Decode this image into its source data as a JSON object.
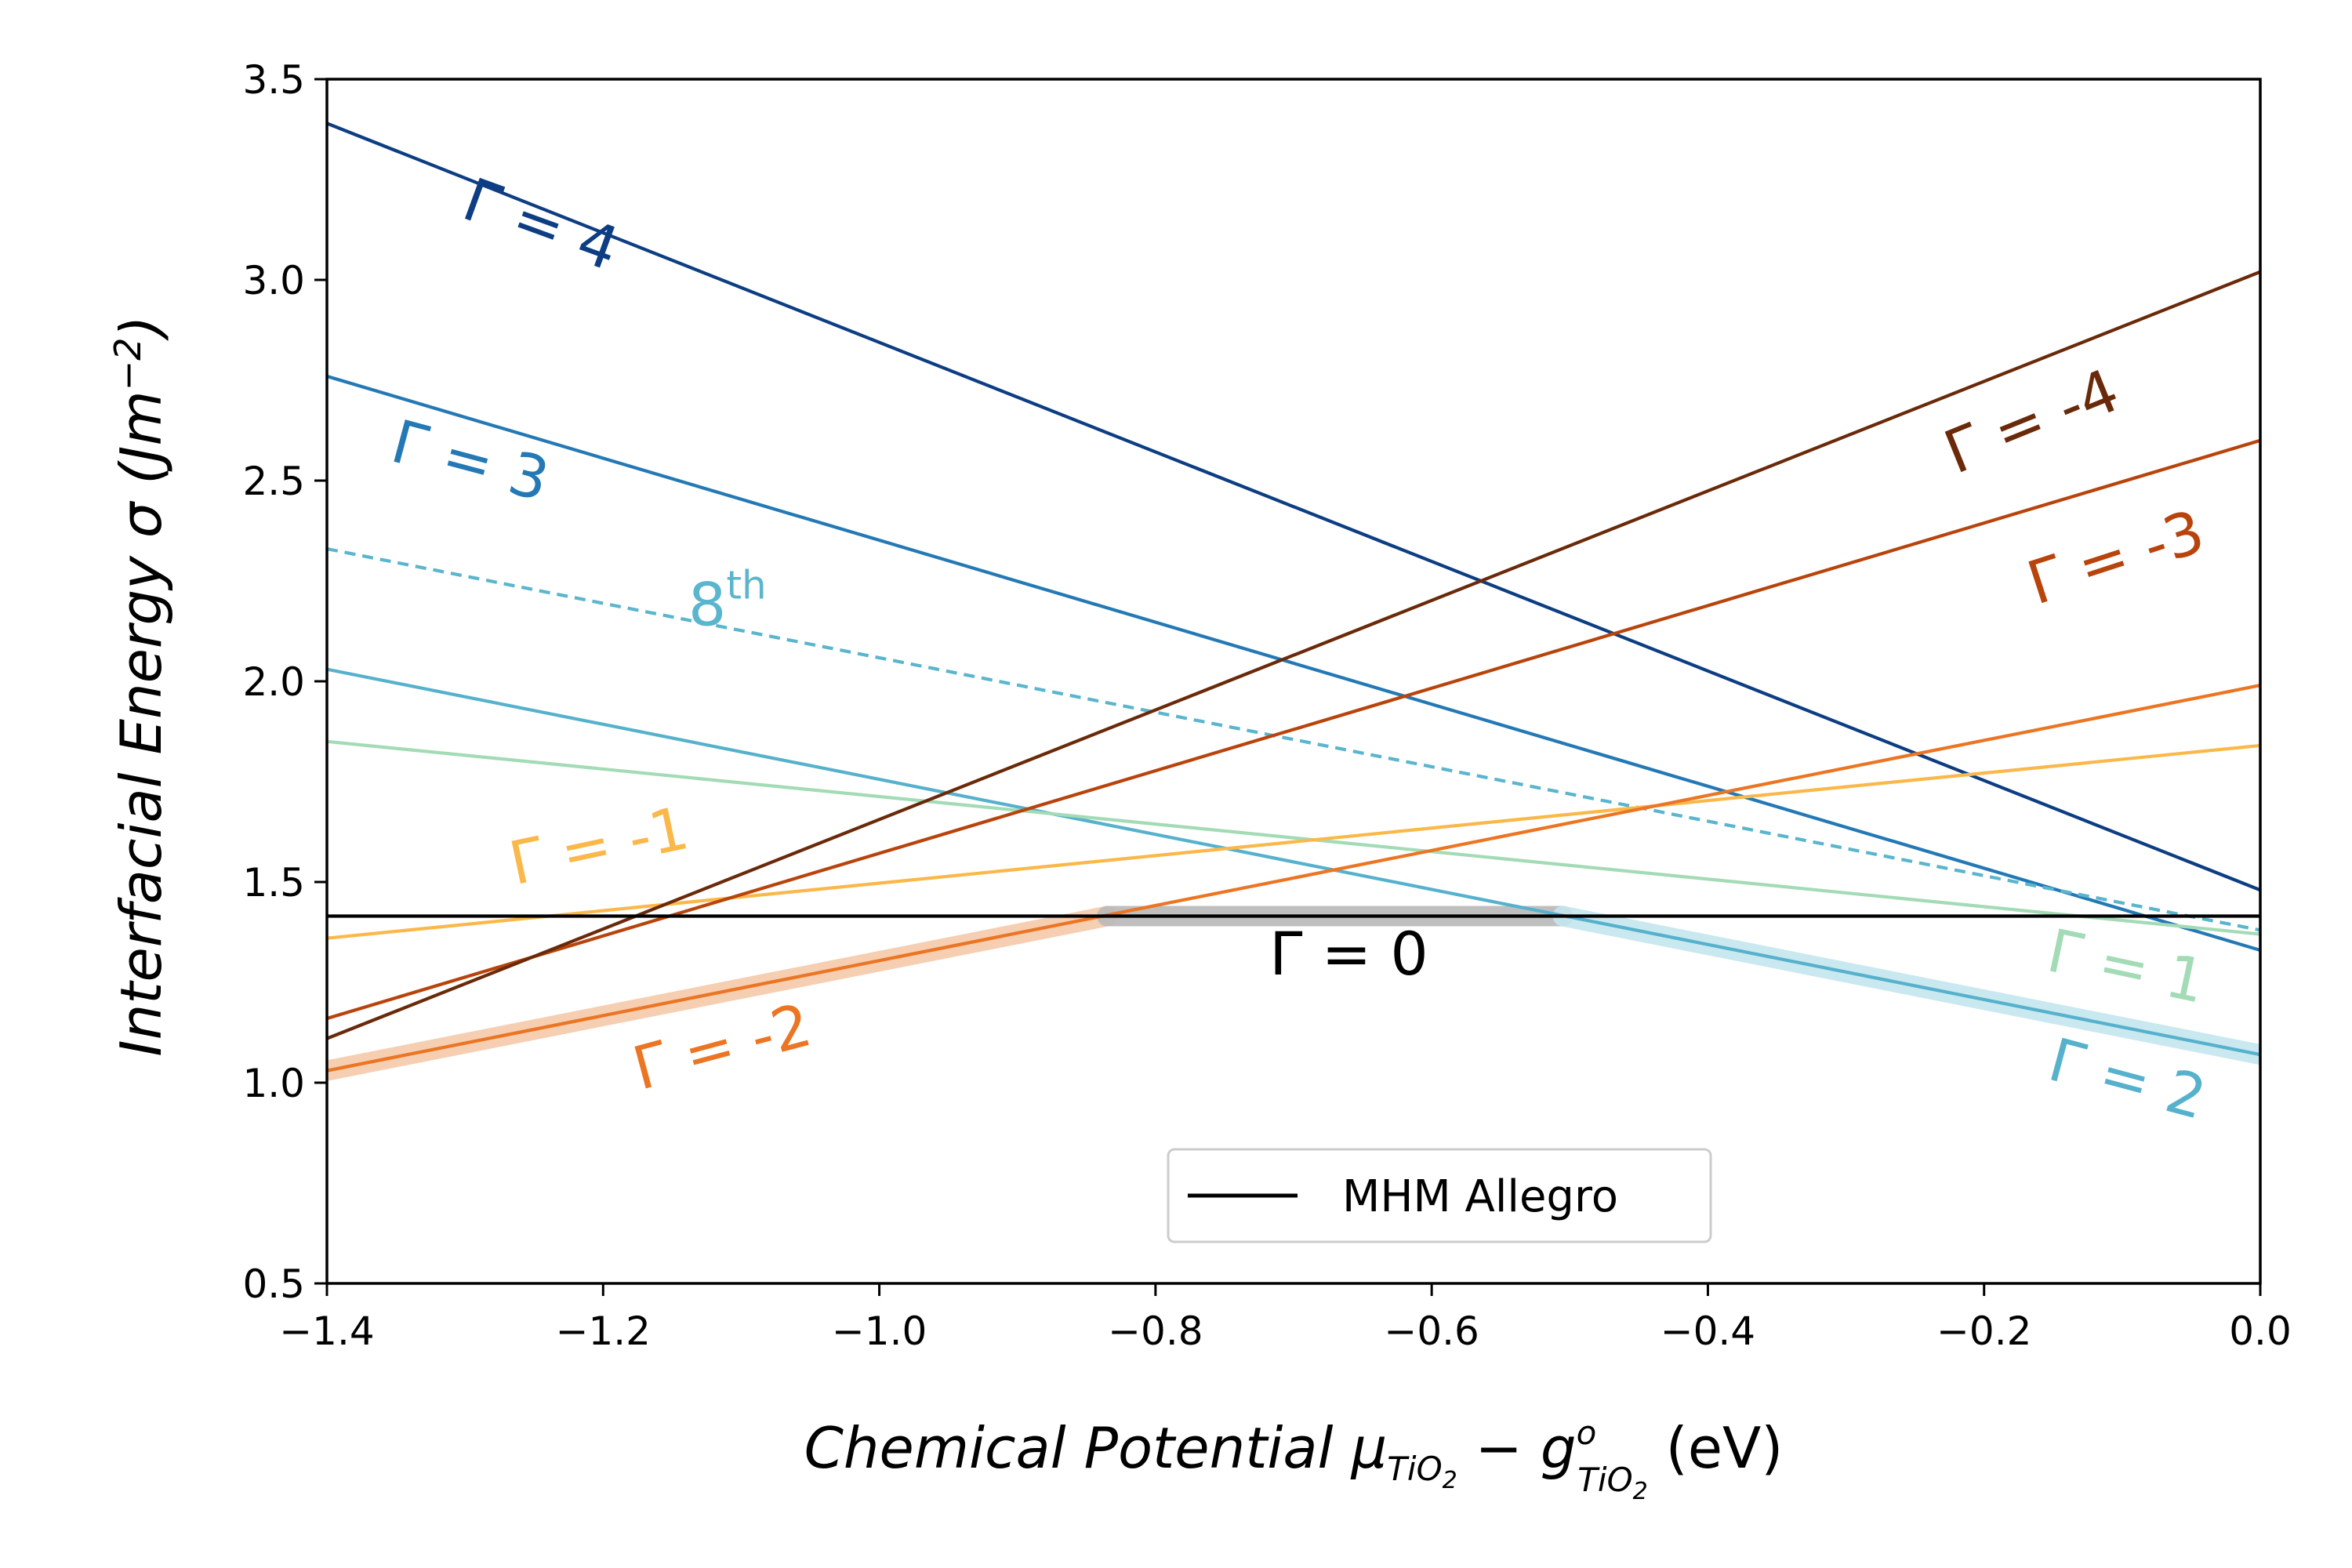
{
  "chart_data": {
    "type": "line",
    "xlabel_main": "Chemical Potential ",
    "xlabel_mu": "μ",
    "xlabel_mu_sub": "TiO",
    "xlabel_mu_sub2": "2",
    "xlabel_minus": " − ",
    "xlabel_g": "g",
    "xlabel_g_sup": "o",
    "xlabel_g_sub": "TiO",
    "xlabel_g_sub2": "2",
    "xlabel_unit": " (eV)",
    "ylabel_main": "Interfacial Energy σ (Jm",
    "ylabel_sup": "−2",
    "ylabel_end": ")",
    "xlim": [
      -1.4,
      0.0
    ],
    "ylim": [
      0.5,
      3.5
    ],
    "xticks": [
      -1.4,
      -1.2,
      -1.0,
      -0.8,
      -0.6,
      -0.4,
      -0.2,
      0.0
    ],
    "xtick_labels": [
      "−1.4",
      "−1.2",
      "−1.0",
      "−0.8",
      "−0.6",
      "−0.4",
      "−0.2",
      "0.0"
    ],
    "yticks": [
      0.5,
      1.0,
      1.5,
      2.0,
      2.5,
      3.0,
      3.5
    ],
    "ytick_labels": [
      "0.5",
      "1.0",
      "1.5",
      "2.0",
      "2.5",
      "3.0",
      "3.5"
    ],
    "series": [
      {
        "key": "g4",
        "label": "Γ = 4",
        "x": [
          -1.4,
          0.0
        ],
        "y": [
          3.39,
          1.48
        ],
        "color": "#0d3d82",
        "dashed": false,
        "label_pos": [
          -1.25,
          3.09
        ],
        "label_rotation": 20
      },
      {
        "key": "g3",
        "label": "Γ = 3",
        "x": [
          -1.4,
          0.0
        ],
        "y": [
          2.76,
          1.33
        ],
        "color": "#2479b5",
        "dashed": false,
        "label_pos": [
          -1.3,
          2.5
        ],
        "label_rotation": 15
      },
      {
        "key": "g8th",
        "label": "8",
        "label_sup": "th",
        "x": [
          -1.4,
          0.0
        ],
        "y": [
          2.33,
          1.38
        ],
        "color": "#5ab5cd",
        "dashed": true,
        "label_pos": [
          -1.11,
          2.14
        ],
        "label_rotation": 0
      },
      {
        "key": "g2",
        "label": "Γ = 2",
        "x": [
          -1.4,
          0.0
        ],
        "y": [
          2.03,
          1.07
        ],
        "color": "#56b1cc",
        "dashed": false,
        "label_pos": [
          -0.1,
          0.96
        ],
        "label_rotation": 15
      },
      {
        "key": "g1",
        "label": "Γ = 1",
        "x": [
          -1.4,
          0.0
        ],
        "y": [
          1.85,
          1.37
        ],
        "color": "#a3dbb6",
        "dashed": false,
        "label_pos": [
          -0.1,
          1.24
        ],
        "label_rotation": 12
      },
      {
        "key": "gm1",
        "label": "Γ = -1",
        "x": [
          -1.4,
          0.0
        ],
        "y": [
          1.36,
          1.84
        ],
        "color": "#fbb84a",
        "dashed": false,
        "label_pos": [
          -1.2,
          1.54
        ],
        "label_rotation": -12
      },
      {
        "key": "gm2",
        "label": "Γ = -2",
        "x": [
          -1.4,
          0.0
        ],
        "y": [
          1.03,
          1.99
        ],
        "color": "#ec7523",
        "dashed": false,
        "label_pos": [
          -1.11,
          1.04
        ],
        "label_rotation": -15
      },
      {
        "key": "gm3",
        "label": "Γ = -3",
        "x": [
          -1.4,
          0.0
        ],
        "y": [
          1.16,
          2.6
        ],
        "color": "#b8440c",
        "dashed": false,
        "label_pos": [
          -0.1,
          2.26
        ],
        "label_rotation": -18
      },
      {
        "key": "gm4",
        "label": "Γ = -4",
        "x": [
          -1.4,
          0.0
        ],
        "y": [
          1.11,
          3.02
        ],
        "color": "#6a2a0a",
        "dashed": false,
        "label_pos": [
          -0.16,
          2.6
        ],
        "label_rotation": -22
      },
      {
        "key": "g0",
        "label": "Γ = 0",
        "x": [
          -1.4,
          0.0
        ],
        "y": [
          1.415,
          1.415
        ],
        "color": "#000000",
        "dashed": false,
        "label_pos": [
          -0.66,
          1.27
        ],
        "label_rotation": 0
      }
    ],
    "highlight_bands": [
      {
        "key": "hl-gm2",
        "x": [
          -1.4,
          -0.835
        ],
        "y": [
          1.03,
          1.415
        ],
        "color": "#f6c9a9"
      },
      {
        "key": "hl-g0",
        "x": [
          -0.835,
          -0.505
        ],
        "y": [
          1.415,
          1.415
        ],
        "color": "#b9b9b9"
      },
      {
        "key": "hl-g2",
        "x": [
          -0.505,
          0.0
        ],
        "y": [
          1.415,
          1.07
        ],
        "color": "#c5e6ee"
      }
    ],
    "legend": [
      {
        "label": "MHM Allegro",
        "color": "#000000"
      }
    ],
    "legend_position": "lower-center"
  }
}
